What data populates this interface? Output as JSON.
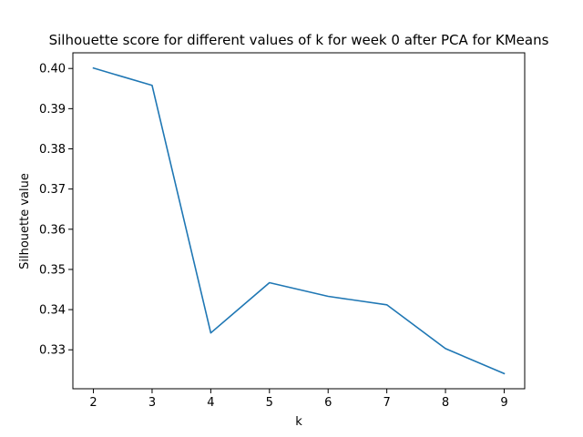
{
  "chart_data": {
    "type": "line",
    "title": "Silhouette score for different values of k for week 0 after PCA for KMeans",
    "xlabel": "k",
    "ylabel": "Silhouette value",
    "x": [
      2,
      3,
      4,
      5,
      6,
      7,
      8,
      9
    ],
    "series": [
      {
        "values": [
          0.4001,
          0.3958,
          0.3342,
          0.3467,
          0.3433,
          0.3412,
          0.3303,
          0.3241
        ],
        "color": "#1f77b4"
      }
    ],
    "xticks": [
      2,
      3,
      4,
      5,
      6,
      7,
      8,
      9
    ],
    "xtick_labels": [
      "2",
      "3",
      "4",
      "5",
      "6",
      "7",
      "8",
      "9"
    ],
    "yticks": [
      0.33,
      0.34,
      0.35,
      0.36,
      0.37,
      0.38,
      0.39,
      0.4
    ],
    "ytick_labels": [
      "0.33",
      "0.34",
      "0.35",
      "0.36",
      "0.37",
      "0.38",
      "0.39",
      "0.40"
    ],
    "xlim": [
      1.65,
      9.35
    ],
    "ylim": [
      0.32031,
      0.4039
    ],
    "grid": false,
    "legend": "none"
  }
}
